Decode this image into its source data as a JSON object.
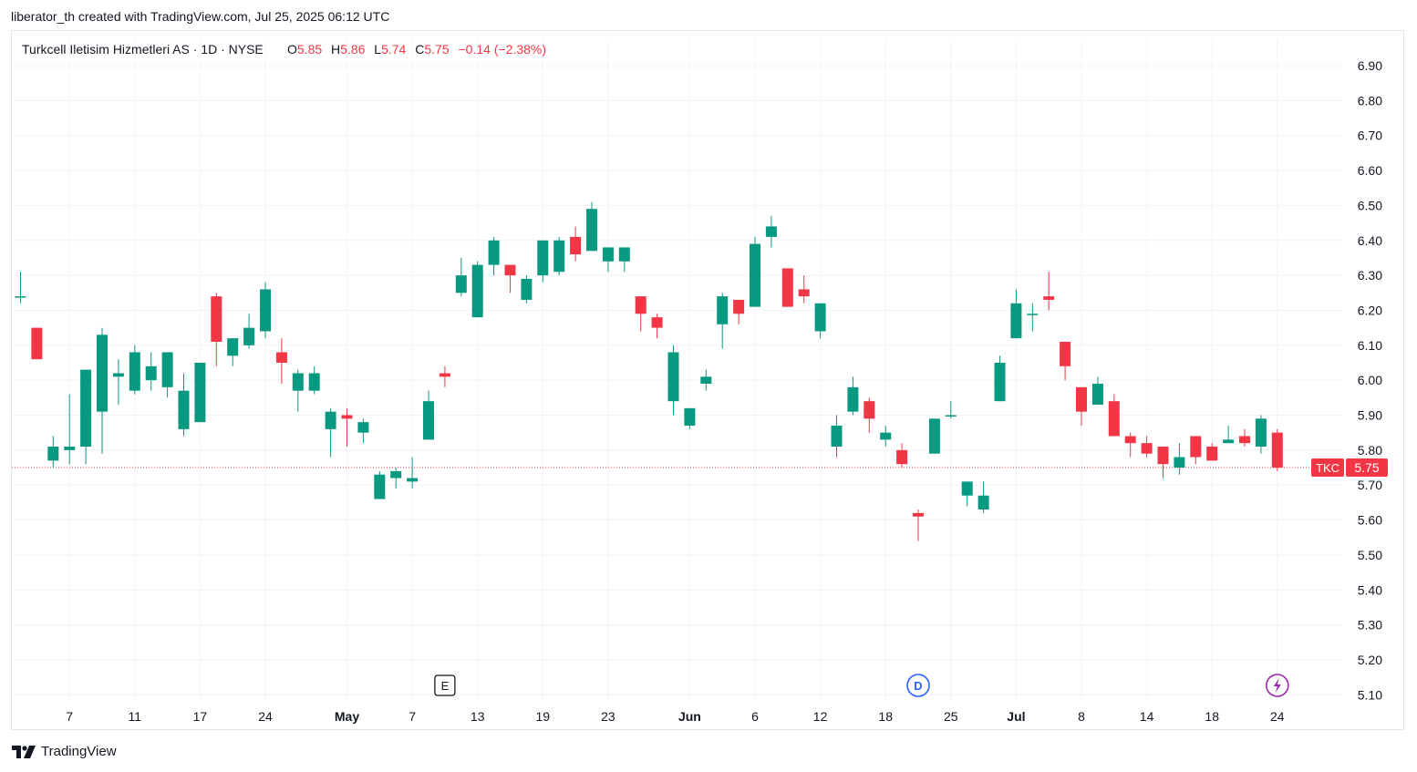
{
  "attribution": "liberator_th created with TradingView.com, Jul 25, 2025 06:12 UTC",
  "footer": {
    "brand": "TradingView",
    "icon": "tradingview-logo-icon"
  },
  "colors": {
    "up": "#089981",
    "down": "#f23645",
    "grid": "#f0f3fa",
    "text": "#131722",
    "last_price": "#f23645"
  },
  "legend": {
    "name": "Turkcell Iletisim Hizmetleri AS · 1D · NYSE",
    "o_label": "O",
    "o_value": "5.85",
    "h_label": "H",
    "h_value": "5.86",
    "l_label": "L",
    "l_value": "5.74",
    "c_label": "C",
    "c_value": "5.75",
    "change": "−0.14 (−2.38%)"
  },
  "chart_data": {
    "type": "candlestick",
    "symbol": "TKC",
    "last_price": 5.75,
    "ylim": [
      5.1,
      6.95
    ],
    "y_ticks": [
      "5.10",
      "5.20",
      "5.30",
      "5.40",
      "5.50",
      "5.60",
      "5.70",
      "5.80",
      "5.90",
      "6.00",
      "6.10",
      "6.20",
      "6.30",
      "6.40",
      "6.50",
      "6.60",
      "6.70",
      "6.80",
      "6.90"
    ],
    "x_ticks": [
      {
        "label": "7",
        "i": 3
      },
      {
        "label": "11",
        "i": 7
      },
      {
        "label": "17",
        "i": 11
      },
      {
        "label": "24",
        "i": 15
      },
      {
        "label": "May",
        "i": 20,
        "bold": true
      },
      {
        "label": "7",
        "i": 24
      },
      {
        "label": "13",
        "i": 28
      },
      {
        "label": "19",
        "i": 32
      },
      {
        "label": "23",
        "i": 36
      },
      {
        "label": "Jun",
        "i": 41,
        "bold": true
      },
      {
        "label": "6",
        "i": 45
      },
      {
        "label": "12",
        "i": 49
      },
      {
        "label": "18",
        "i": 53
      },
      {
        "label": "25",
        "i": 57
      },
      {
        "label": "Jul",
        "i": 61,
        "bold": true
      },
      {
        "label": "8",
        "i": 65
      },
      {
        "label": "14",
        "i": 69
      },
      {
        "label": "18",
        "i": 73
      },
      {
        "label": "24",
        "i": 77
      }
    ],
    "events": [
      {
        "label": "E",
        "i": 26,
        "kind": "earnings"
      },
      {
        "label": "D",
        "i": 55,
        "kind": "dividend"
      },
      {
        "label": "⚡",
        "i": 77,
        "kind": "split"
      }
    ],
    "candles": [
      [
        6.24,
        6.31,
        6.22,
        6.24
      ],
      [
        6.15,
        6.15,
        6.06,
        6.06
      ],
      [
        5.77,
        5.84,
        5.75,
        5.81
      ],
      [
        5.8,
        5.96,
        5.76,
        5.81
      ],
      [
        5.81,
        6.03,
        5.76,
        6.03
      ],
      [
        5.91,
        6.15,
        5.79,
        6.13
      ],
      [
        6.01,
        6.06,
        5.93,
        6.02
      ],
      [
        5.97,
        6.1,
        5.96,
        6.08
      ],
      [
        6.0,
        6.08,
        5.97,
        6.04
      ],
      [
        5.98,
        6.08,
        5.95,
        6.08
      ],
      [
        5.86,
        6.02,
        5.84,
        5.97
      ],
      [
        5.88,
        6.05,
        5.88,
        6.05
      ],
      [
        6.24,
        6.25,
        6.04,
        6.11
      ],
      [
        6.07,
        6.12,
        6.04,
        6.12
      ],
      [
        6.1,
        6.19,
        6.09,
        6.15
      ],
      [
        6.14,
        6.28,
        6.12,
        6.26
      ],
      [
        6.08,
        6.12,
        5.99,
        6.05
      ],
      [
        5.97,
        6.03,
        5.91,
        6.02
      ],
      [
        5.97,
        6.04,
        5.96,
        6.02
      ],
      [
        5.86,
        5.92,
        5.78,
        5.91
      ],
      [
        5.9,
        5.92,
        5.81,
        5.89
      ],
      [
        5.85,
        5.89,
        5.82,
        5.88
      ],
      [
        5.66,
        5.74,
        5.66,
        5.73
      ],
      [
        5.72,
        5.75,
        5.69,
        5.74
      ],
      [
        5.71,
        5.78,
        5.69,
        5.72
      ],
      [
        5.83,
        5.97,
        5.83,
        5.94
      ],
      [
        6.02,
        6.04,
        5.98,
        6.01
      ],
      [
        6.25,
        6.35,
        6.24,
        6.3
      ],
      [
        6.18,
        6.34,
        6.18,
        6.33
      ],
      [
        6.33,
        6.41,
        6.3,
        6.4
      ],
      [
        6.33,
        6.33,
        6.25,
        6.3
      ],
      [
        6.23,
        6.3,
        6.22,
        6.29
      ],
      [
        6.3,
        6.4,
        6.28,
        6.4
      ],
      [
        6.31,
        6.41,
        6.3,
        6.4
      ],
      [
        6.41,
        6.44,
        6.34,
        6.36
      ],
      [
        6.37,
        6.51,
        6.37,
        6.49
      ],
      [
        6.34,
        6.38,
        6.31,
        6.38
      ],
      [
        6.34,
        6.38,
        6.31,
        6.38
      ],
      [
        6.24,
        6.24,
        6.14,
        6.19
      ],
      [
        6.18,
        6.19,
        6.12,
        6.15
      ],
      [
        5.94,
        6.1,
        5.9,
        6.08
      ],
      [
        5.87,
        5.92,
        5.86,
        5.92
      ],
      [
        5.99,
        6.03,
        5.97,
        6.01
      ],
      [
        6.16,
        6.25,
        6.09,
        6.24
      ],
      [
        6.23,
        6.23,
        6.16,
        6.19
      ],
      [
        6.21,
        6.41,
        6.21,
        6.39
      ],
      [
        6.41,
        6.47,
        6.38,
        6.44
      ],
      [
        6.32,
        6.32,
        6.21,
        6.21
      ],
      [
        6.26,
        6.3,
        6.22,
        6.24
      ],
      [
        6.14,
        6.22,
        6.12,
        6.22
      ],
      [
        5.81,
        5.9,
        5.78,
        5.87
      ],
      [
        5.91,
        6.01,
        5.9,
        5.98
      ],
      [
        5.94,
        5.95,
        5.85,
        5.89
      ],
      [
        5.83,
        5.87,
        5.81,
        5.85
      ],
      [
        5.8,
        5.82,
        5.75,
        5.76
      ],
      [
        5.62,
        5.63,
        5.54,
        5.61
      ],
      [
        5.79,
        5.89,
        5.79,
        5.89
      ],
      [
        5.9,
        5.94,
        5.89,
        5.9
      ],
      [
        5.67,
        5.71,
        5.64,
        5.71
      ],
      [
        5.63,
        5.71,
        5.62,
        5.67
      ],
      [
        5.94,
        6.07,
        5.94,
        6.05
      ],
      [
        6.12,
        6.26,
        6.12,
        6.22
      ],
      [
        6.19,
        6.22,
        6.14,
        6.19
      ],
      [
        6.24,
        6.31,
        6.2,
        6.23
      ],
      [
        6.11,
        6.11,
        6.0,
        6.04
      ],
      [
        5.98,
        5.98,
        5.87,
        5.91
      ],
      [
        5.93,
        6.01,
        5.93,
        5.99
      ],
      [
        5.94,
        5.96,
        5.84,
        5.84
      ],
      [
        5.84,
        5.85,
        5.78,
        5.82
      ],
      [
        5.82,
        5.84,
        5.78,
        5.79
      ],
      [
        5.81,
        5.81,
        5.72,
        5.76
      ],
      [
        5.75,
        5.82,
        5.73,
        5.78
      ],
      [
        5.84,
        5.84,
        5.76,
        5.78
      ],
      [
        5.81,
        5.82,
        5.77,
        5.77
      ],
      [
        5.82,
        5.87,
        5.82,
        5.83
      ],
      [
        5.84,
        5.86,
        5.81,
        5.82
      ],
      [
        5.81,
        5.9,
        5.79,
        5.89
      ],
      [
        5.85,
        5.86,
        5.74,
        5.75
      ]
    ]
  }
}
